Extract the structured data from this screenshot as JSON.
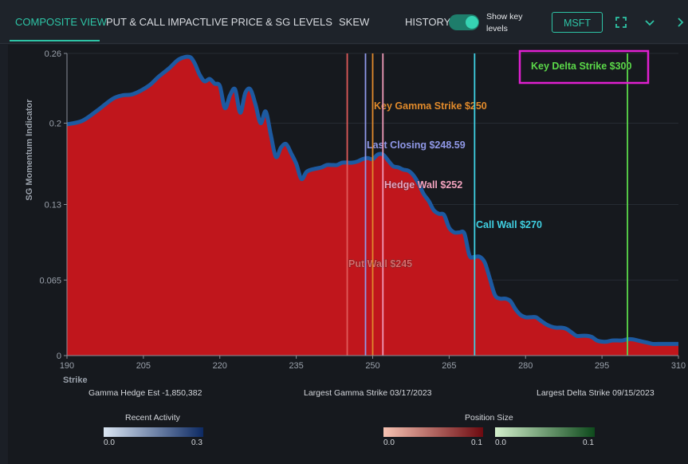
{
  "tabs": [
    {
      "label": "COMPOSITE VIEW",
      "active": true
    },
    {
      "label": "PUT & CALL IMPACT"
    },
    {
      "label": "LIVE PRICE & SG LEVELS"
    },
    {
      "label": "SKEW"
    },
    {
      "label": "HISTORY"
    }
  ],
  "toggle": {
    "label": "Show key levels",
    "on": true
  },
  "ticker": "MSFT",
  "icons": {
    "expand": "expand-icon",
    "chevron": "chevron-down-icon",
    "next": "chevron-right-icon"
  },
  "chart_data": {
    "type": "area",
    "title": "",
    "xlabel": "Strike",
    "ylabel": "SG Momentum Indicator",
    "xlim": [
      190,
      310
    ],
    "ylim": [
      0,
      0.26
    ],
    "x_ticks": [
      "190",
      "205",
      "220",
      "235",
      "250",
      "265",
      "280",
      "295",
      "310"
    ],
    "y_ticks": [
      "0",
      "0.065",
      "0.13",
      "0.2",
      "0.26"
    ],
    "x_tick_values": [
      190,
      205,
      220,
      235,
      250,
      265,
      280,
      295,
      310
    ],
    "y_tick_values": [
      0,
      0.065,
      0.13,
      0.2,
      0.26
    ],
    "fill_color": "#c0161c",
    "line_color": "#1d5aa1",
    "series": [
      {
        "x": [
          190,
          193,
          196,
          199,
          201,
          203,
          206,
          208,
          210,
          212,
          214,
          215,
          216,
          217,
          218,
          219,
          220,
          221,
          222,
          223,
          224,
          225,
          226,
          227,
          228,
          229,
          230,
          231,
          232,
          233,
          234,
          235,
          236,
          237,
          238,
          239,
          240,
          241,
          242,
          243,
          244,
          245,
          246,
          247,
          248,
          249,
          250,
          251,
          252,
          253,
          254,
          255,
          256,
          257,
          258,
          259,
          260,
          261,
          262,
          263,
          264,
          265,
          266,
          267,
          268,
          269,
          270,
          271,
          272,
          273,
          274,
          275,
          276,
          277,
          278,
          279,
          280,
          281,
          282,
          283,
          284,
          285,
          286,
          287,
          288,
          289,
          290,
          291,
          292,
          293,
          294,
          295,
          296,
          297,
          298,
          299,
          300,
          301,
          302,
          303,
          304,
          305,
          306,
          307,
          308,
          309,
          310
        ],
        "y": [
          0.199,
          0.202,
          0.211,
          0.221,
          0.224,
          0.225,
          0.232,
          0.24,
          0.247,
          0.255,
          0.257,
          0.252,
          0.242,
          0.236,
          0.238,
          0.234,
          0.232,
          0.213,
          0.224,
          0.229,
          0.209,
          0.226,
          0.229,
          0.216,
          0.2,
          0.21,
          0.19,
          0.171,
          0.179,
          0.182,
          0.174,
          0.165,
          0.152,
          0.158,
          0.16,
          0.161,
          0.162,
          0.164,
          0.164,
          0.164,
          0.166,
          0.166,
          0.166,
          0.167,
          0.169,
          0.17,
          0.169,
          0.173,
          0.173,
          0.168,
          0.163,
          0.162,
          0.16,
          0.159,
          0.155,
          0.148,
          0.139,
          0.133,
          0.125,
          0.122,
          0.121,
          0.11,
          0.106,
          0.106,
          0.105,
          0.086,
          0.085,
          0.085,
          0.08,
          0.066,
          0.052,
          0.049,
          0.049,
          0.047,
          0.04,
          0.035,
          0.033,
          0.033,
          0.033,
          0.03,
          0.027,
          0.025,
          0.024,
          0.024,
          0.023,
          0.02,
          0.017,
          0.017,
          0.017,
          0.016,
          0.013,
          0.012,
          0.012,
          0.013,
          0.013,
          0.013,
          0.014,
          0.014,
          0.013,
          0.012,
          0.011,
          0.01,
          0.01,
          0.01,
          0.01,
          0.01,
          0.01
        ]
      }
    ],
    "key_levels": [
      {
        "label": "Put Wall $245",
        "x": 245,
        "color": "#e05a5a",
        "label_color": "#e06b6b"
      },
      {
        "label": "Last Closing $248.59",
        "x": 248.59,
        "color": "#8f98e8",
        "label_color": "#8f98e8"
      },
      {
        "label": "Key Gamma Strike $250",
        "x": 250,
        "color": "#e08a2c",
        "label_color": "#e08a2c"
      },
      {
        "label": "Hedge Wall $252",
        "x": 252,
        "color": "#ee9ab8",
        "label_color": "#f3a3c0"
      },
      {
        "label": "Call Wall $270",
        "x": 270,
        "color": "#3fd0e3",
        "label_color": "#3fd0e3"
      },
      {
        "label": "Key Delta Strike $300",
        "x": 300,
        "color": "#5ad84a",
        "label_color": "#5ad84a"
      }
    ],
    "highlight_color": "#e020d0"
  },
  "footer": {
    "gamma_hedge": "Gamma Hedge Est -1,850,382",
    "largest_gamma": "Largest Gamma Strike 03/17/2023",
    "largest_delta": "Largest Delta Strike 09/15/2023"
  },
  "legends": {
    "recent_activity": {
      "title": "Recent Activity",
      "min": "0.0",
      "max": "0.3",
      "colors": [
        "#dbe6f3",
        "#0d2a63"
      ]
    },
    "position_size": {
      "title": "Position Size",
      "red": {
        "min": "0.0",
        "max": "0.1",
        "colors": [
          "#f6c3b3",
          "#6d0a10"
        ]
      },
      "green": {
        "min": "0.0",
        "max": "0.1",
        "colors": [
          "#d3efcc",
          "#0e4a1c"
        ]
      }
    }
  }
}
